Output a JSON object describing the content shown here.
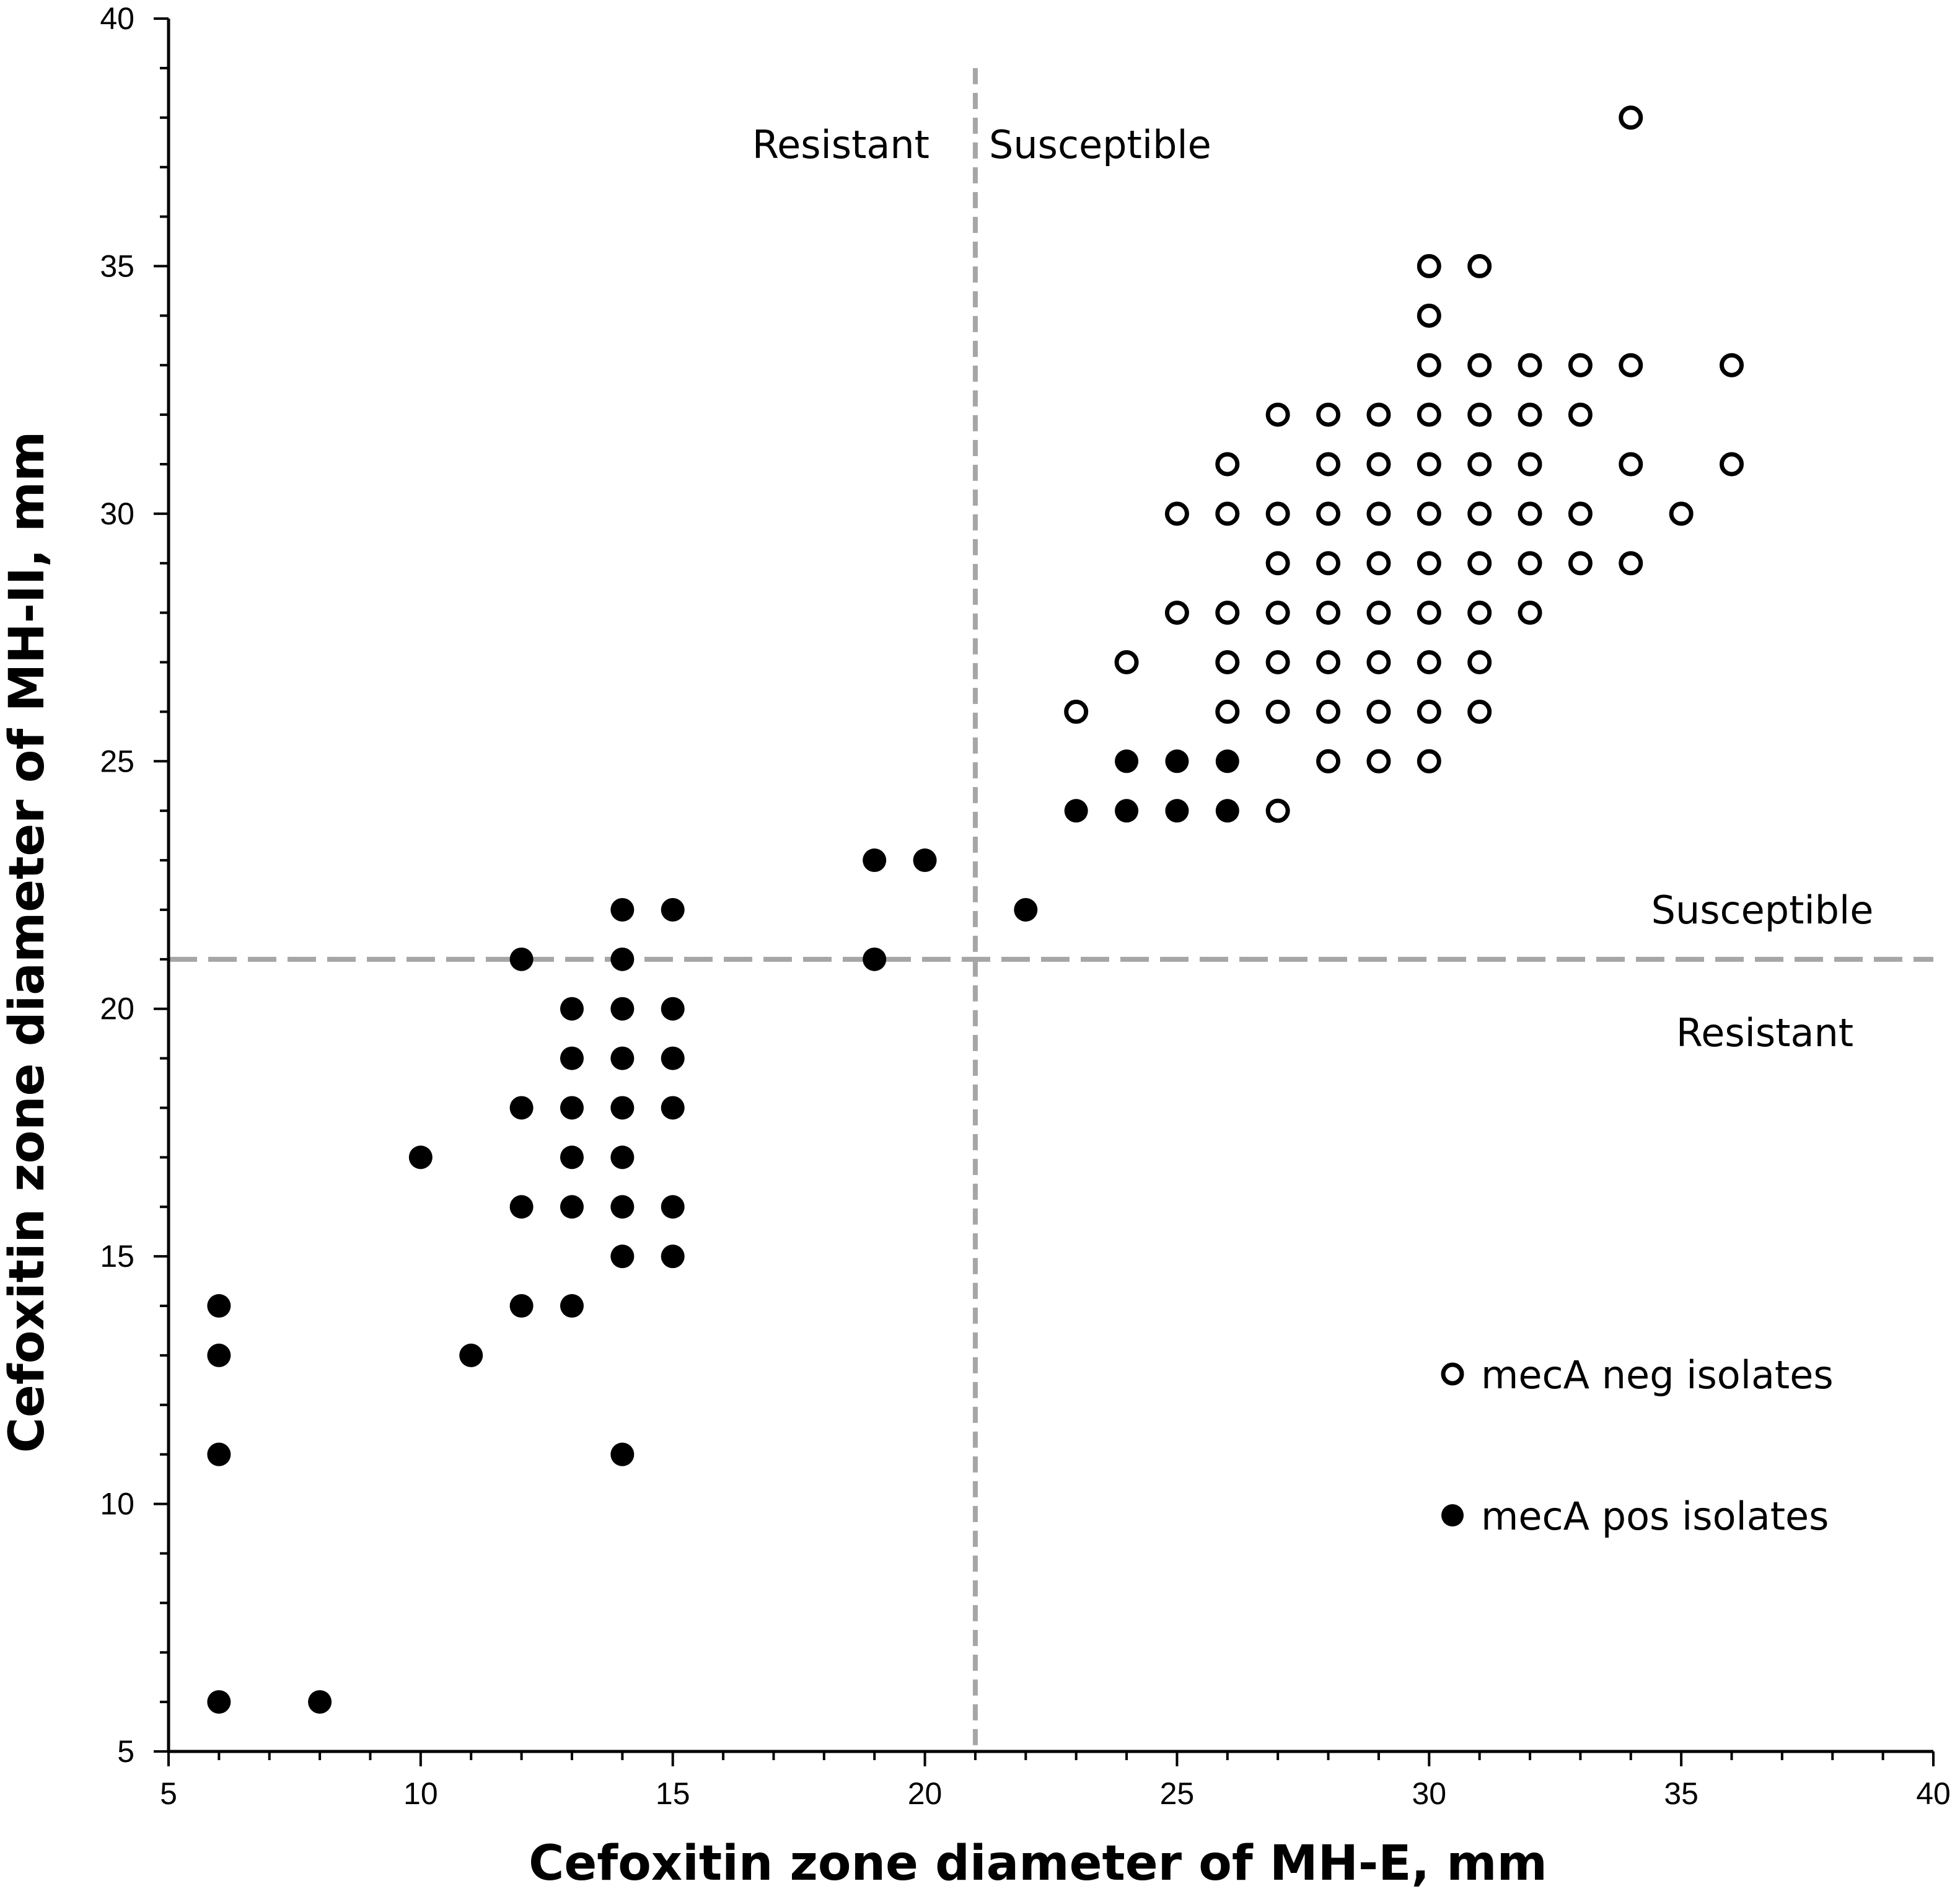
{
  "chart_data": {
    "type": "scatter",
    "title": "",
    "xlabel": "Cefoxitin zone diameter of MH-E, mm",
    "ylabel": "Cefoxitin zone diameter of MH-II, mm",
    "xlim": [
      5,
      40
    ],
    "ylim": [
      5,
      40
    ],
    "xticks": [
      5,
      10,
      15,
      20,
      25,
      30,
      35,
      40
    ],
    "yticks": [
      5,
      10,
      15,
      20,
      25,
      30,
      35,
      40
    ],
    "breakpoints": {
      "x": 21,
      "y": 21
    },
    "zone_labels": {
      "vertical_left": "Resistant",
      "vertical_right": "Susceptible",
      "horizontal_above": "Susceptible",
      "horizontal_below": "Resistant"
    },
    "legend_position": "bottom-right",
    "series": [
      {
        "name": "mecA neg isolates",
        "marker": "open-circle",
        "points": [
          [
            34,
            38
          ],
          [
            30,
            35
          ],
          [
            31,
            35
          ],
          [
            30,
            34
          ],
          [
            30,
            33
          ],
          [
            31,
            33
          ],
          [
            32,
            33
          ],
          [
            33,
            33
          ],
          [
            34,
            33
          ],
          [
            36,
            33
          ],
          [
            27,
            32
          ],
          [
            28,
            32
          ],
          [
            29,
            32
          ],
          [
            30,
            32
          ],
          [
            31,
            32
          ],
          [
            32,
            32
          ],
          [
            33,
            32
          ],
          [
            26,
            31
          ],
          [
            28,
            31
          ],
          [
            29,
            31
          ],
          [
            30,
            31
          ],
          [
            31,
            31
          ],
          [
            32,
            31
          ],
          [
            34,
            31
          ],
          [
            36,
            31
          ],
          [
            25,
            30
          ],
          [
            26,
            30
          ],
          [
            27,
            30
          ],
          [
            28,
            30
          ],
          [
            29,
            30
          ],
          [
            30,
            30
          ],
          [
            31,
            30
          ],
          [
            32,
            30
          ],
          [
            33,
            30
          ],
          [
            35,
            30
          ],
          [
            27,
            29
          ],
          [
            28,
            29
          ],
          [
            29,
            29
          ],
          [
            30,
            29
          ],
          [
            31,
            29
          ],
          [
            32,
            29
          ],
          [
            33,
            29
          ],
          [
            34,
            29
          ],
          [
            25,
            28
          ],
          [
            26,
            28
          ],
          [
            27,
            28
          ],
          [
            28,
            28
          ],
          [
            29,
            28
          ],
          [
            30,
            28
          ],
          [
            31,
            28
          ],
          [
            32,
            28
          ],
          [
            24,
            27
          ],
          [
            26,
            27
          ],
          [
            27,
            27
          ],
          [
            28,
            27
          ],
          [
            29,
            27
          ],
          [
            30,
            27
          ],
          [
            31,
            27
          ],
          [
            23,
            26
          ],
          [
            26,
            26
          ],
          [
            27,
            26
          ],
          [
            28,
            26
          ],
          [
            29,
            26
          ],
          [
            30,
            26
          ],
          [
            31,
            26
          ],
          [
            28,
            25
          ],
          [
            29,
            25
          ],
          [
            30,
            25
          ],
          [
            27,
            24
          ]
        ]
      },
      {
        "name": "mecA pos isolates",
        "marker": "filled-circle",
        "points": [
          [
            24,
            25
          ],
          [
            25,
            25
          ],
          [
            26,
            25
          ],
          [
            23,
            24
          ],
          [
            24,
            24
          ],
          [
            25,
            24
          ],
          [
            26,
            24
          ],
          [
            19,
            23
          ],
          [
            20,
            23
          ],
          [
            14,
            22
          ],
          [
            15,
            22
          ],
          [
            22,
            22
          ],
          [
            12,
            21
          ],
          [
            14,
            21
          ],
          [
            19,
            21
          ],
          [
            13,
            20
          ],
          [
            14,
            20
          ],
          [
            15,
            20
          ],
          [
            13,
            19
          ],
          [
            14,
            19
          ],
          [
            15,
            19
          ],
          [
            12,
            18
          ],
          [
            13,
            18
          ],
          [
            14,
            18
          ],
          [
            15,
            18
          ],
          [
            10,
            17
          ],
          [
            13,
            17
          ],
          [
            14,
            17
          ],
          [
            12,
            16
          ],
          [
            13,
            16
          ],
          [
            14,
            16
          ],
          [
            15,
            16
          ],
          [
            14,
            15
          ],
          [
            15,
            15
          ],
          [
            6,
            14
          ],
          [
            12,
            14
          ],
          [
            13,
            14
          ],
          [
            6,
            13
          ],
          [
            11,
            13
          ],
          [
            6,
            11
          ],
          [
            14,
            11
          ],
          [
            6,
            6
          ],
          [
            8,
            6
          ]
        ]
      }
    ]
  }
}
